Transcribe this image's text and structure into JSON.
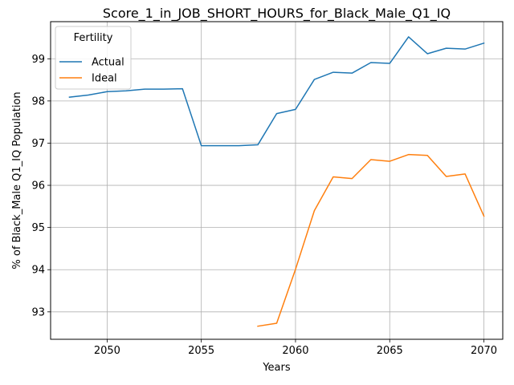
{
  "chart_data": {
    "type": "line",
    "title": "Score_1_in_JOB_SHORT_HOURS_for_Black_Male_Q1_IQ",
    "xlabel": "Years",
    "ylabel": "% of Black_Male Q1_IQ Population",
    "xlim": [
      2047,
      2071
    ],
    "ylim": [
      92.35,
      99.88
    ],
    "xticks": [
      2050,
      2055,
      2060,
      2065,
      2070
    ],
    "yticks": [
      93,
      94,
      95,
      96,
      97,
      98,
      99
    ],
    "grid": true,
    "legend": {
      "title": "Fertility",
      "placement": "top-left"
    },
    "series": [
      {
        "name": "Actual",
        "color": "#1f77b4",
        "x": [
          2048,
          2049,
          2050,
          2051,
          2052,
          2053,
          2054,
          2055,
          2056,
          2057,
          2058,
          2059,
          2060,
          2061,
          2062,
          2063,
          2064,
          2065,
          2066,
          2067,
          2068,
          2069,
          2070
        ],
        "y": [
          98.09,
          98.14,
          98.22,
          98.24,
          98.28,
          98.28,
          98.29,
          96.94,
          96.94,
          96.94,
          96.96,
          97.7,
          97.8,
          98.51,
          98.68,
          98.66,
          98.91,
          98.89,
          99.52,
          99.12,
          99.25,
          99.23,
          99.37
        ]
      },
      {
        "name": "Ideal",
        "color": "#ff7f0e",
        "x": [
          2058,
          2059,
          2060,
          2061,
          2062,
          2063,
          2064,
          2065,
          2066,
          2067,
          2068,
          2069,
          2070
        ],
        "y": [
          92.66,
          92.73,
          94.01,
          95.4,
          96.2,
          96.16,
          96.61,
          96.57,
          96.73,
          96.71,
          96.21,
          96.27,
          95.27
        ]
      }
    ]
  }
}
